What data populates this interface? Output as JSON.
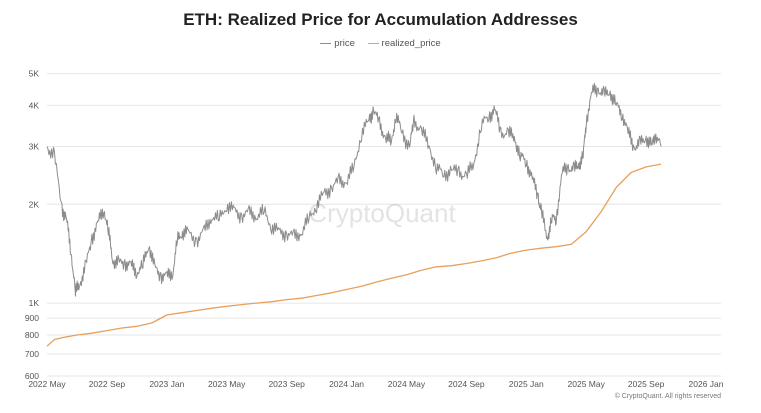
{
  "chart_data": {
    "type": "line",
    "title": "ETH: Realized Price for Accumulation Addresses",
    "yscale": "log",
    "ylim": [
      600,
      5500
    ],
    "y_ticks": [
      {
        "value": 600,
        "label": "600"
      },
      {
        "value": 700,
        "label": "700"
      },
      {
        "value": 800,
        "label": "800"
      },
      {
        "value": 900,
        "label": "900"
      },
      {
        "value": 1000,
        "label": "1K"
      },
      {
        "value": 2000,
        "label": "2K"
      },
      {
        "value": 3000,
        "label": "3K"
      },
      {
        "value": 4000,
        "label": "4K"
      },
      {
        "value": 5000,
        "label": "5K"
      }
    ],
    "x_ticks": [
      "2022 May",
      "2022 Sep",
      "2023 Jan",
      "2023 May",
      "2023 Sep",
      "2024 Jan",
      "2024 May",
      "2024 Sep",
      "2025 Jan",
      "2025 May",
      "2025 Sep",
      "2026 Jan"
    ],
    "x_unit": "months since 2022-05-01",
    "xlim": [
      0,
      45
    ],
    "series": [
      {
        "name": "price",
        "color": "#8c8c8c",
        "points": [
          [
            0.0,
            3000
          ],
          [
            0.5,
            2800
          ],
          [
            1.0,
            1950
          ],
          [
            1.3,
            1800
          ],
          [
            1.6,
            1450
          ],
          [
            1.9,
            1080
          ],
          [
            2.2,
            1150
          ],
          [
            2.6,
            1300
          ],
          [
            3.0,
            1580
          ],
          [
            3.4,
            1750
          ],
          [
            3.8,
            1950
          ],
          [
            4.1,
            1650
          ],
          [
            4.4,
            1350
          ],
          [
            4.8,
            1320
          ],
          [
            5.2,
            1330
          ],
          [
            5.6,
            1300
          ],
          [
            6.0,
            1250
          ],
          [
            6.4,
            1300
          ],
          [
            6.8,
            1520
          ],
          [
            7.2,
            1270
          ],
          [
            7.6,
            1220
          ],
          [
            8.0,
            1200
          ],
          [
            8.4,
            1250
          ],
          [
            8.7,
            1550
          ],
          [
            9.0,
            1650
          ],
          [
            9.4,
            1630
          ],
          [
            10.0,
            1560
          ],
          [
            10.5,
            1650
          ],
          [
            11.0,
            1850
          ],
          [
            11.5,
            1800
          ],
          [
            12.0,
            2000
          ],
          [
            12.5,
            1900
          ],
          [
            13.0,
            1850
          ],
          [
            13.5,
            1880
          ],
          [
            14.0,
            1850
          ],
          [
            14.5,
            1900
          ],
          [
            15.0,
            1720
          ],
          [
            15.5,
            1640
          ],
          [
            16.0,
            1630
          ],
          [
            16.5,
            1590
          ],
          [
            17.0,
            1650
          ],
          [
            17.5,
            1810
          ],
          [
            18.0,
            2000
          ],
          [
            18.5,
            2150
          ],
          [
            19.0,
            2250
          ],
          [
            19.5,
            2350
          ],
          [
            20.0,
            2350
          ],
          [
            20.5,
            2600
          ],
          [
            21.0,
            3300
          ],
          [
            21.5,
            3600
          ],
          [
            21.8,
            3900
          ],
          [
            22.2,
            3500
          ],
          [
            22.6,
            3200
          ],
          [
            23.0,
            3100
          ],
          [
            23.3,
            3750
          ],
          [
            23.7,
            3300
          ],
          [
            24.2,
            3000
          ],
          [
            24.5,
            3550
          ],
          [
            25.0,
            3400
          ],
          [
            25.5,
            3000
          ],
          [
            26.0,
            2600
          ],
          [
            26.5,
            2450
          ],
          [
            27.0,
            2550
          ],
          [
            27.5,
            2500
          ],
          [
            28.0,
            2450
          ],
          [
            28.5,
            2650
          ],
          [
            29.0,
            3500
          ],
          [
            29.5,
            3700
          ],
          [
            29.9,
            3900
          ],
          [
            30.3,
            3300
          ],
          [
            30.8,
            3300
          ],
          [
            31.2,
            3200
          ],
          [
            31.6,
            2800
          ],
          [
            32.0,
            2700
          ],
          [
            32.4,
            2400
          ],
          [
            32.8,
            2100
          ],
          [
            33.0,
            1900
          ],
          [
            33.4,
            1580
          ],
          [
            33.7,
            1800
          ],
          [
            34.0,
            1820
          ],
          [
            34.4,
            2500
          ],
          [
            34.8,
            2600
          ],
          [
            35.2,
            2550
          ],
          [
            35.5,
            2650
          ],
          [
            35.8,
            2800
          ],
          [
            36.0,
            3600
          ],
          [
            36.4,
            4400
          ],
          [
            36.8,
            4500
          ],
          [
            37.2,
            4300
          ],
          [
            37.6,
            4400
          ],
          [
            38.0,
            4000
          ],
          [
            38.4,
            3800
          ],
          [
            38.8,
            3300
          ],
          [
            39.2,
            3000
          ],
          [
            39.6,
            3050
          ],
          [
            40.0,
            3200
          ],
          [
            40.4,
            3000
          ],
          [
            40.6,
            3300
          ],
          [
            41.0,
            3000
          ]
        ]
      },
      {
        "name": "realized_price",
        "color": "#e8a05c",
        "points": [
          [
            0.0,
            740
          ],
          [
            0.5,
            775
          ],
          [
            1.0,
            785
          ],
          [
            2.0,
            800
          ],
          [
            3.0,
            810
          ],
          [
            4.0,
            825
          ],
          [
            5.0,
            840
          ],
          [
            6.0,
            850
          ],
          [
            7.0,
            870
          ],
          [
            8.0,
            920
          ],
          [
            9.0,
            935
          ],
          [
            10.0,
            950
          ],
          [
            11.0,
            965
          ],
          [
            12.0,
            978
          ],
          [
            13.0,
            990
          ],
          [
            14.0,
            1000
          ],
          [
            15.0,
            1010
          ],
          [
            16.0,
            1025
          ],
          [
            17.0,
            1035
          ],
          [
            18.0,
            1055
          ],
          [
            19.0,
            1075
          ],
          [
            20.0,
            1100
          ],
          [
            21.0,
            1125
          ],
          [
            22.0,
            1160
          ],
          [
            23.0,
            1190
          ],
          [
            24.0,
            1220
          ],
          [
            25.0,
            1260
          ],
          [
            26.0,
            1290
          ],
          [
            27.0,
            1300
          ],
          [
            28.0,
            1320
          ],
          [
            29.0,
            1345
          ],
          [
            30.0,
            1375
          ],
          [
            31.0,
            1420
          ],
          [
            32.0,
            1450
          ],
          [
            33.0,
            1470
          ],
          [
            34.0,
            1485
          ],
          [
            35.0,
            1510
          ],
          [
            36.0,
            1650
          ],
          [
            37.0,
            1900
          ],
          [
            38.0,
            2250
          ],
          [
            39.0,
            2500
          ],
          [
            40.0,
            2600
          ],
          [
            41.0,
            2650
          ]
        ]
      }
    ],
    "watermark": "CryptoQuant",
    "source": "© CryptoQuant. All rights reserved"
  }
}
